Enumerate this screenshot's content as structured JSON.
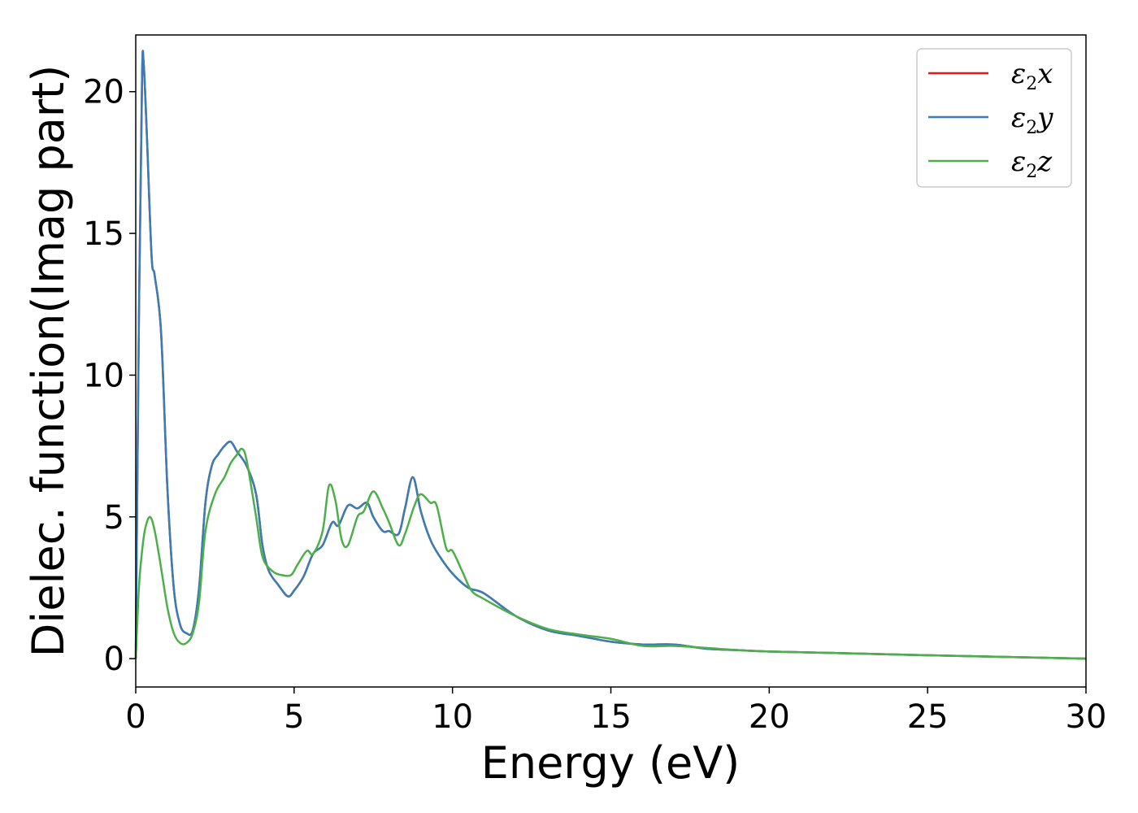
{
  "chart_data": {
    "type": "line",
    "xlabel": "Energy (eV)",
    "ylabel": "Dielec. function(Imag part)",
    "xlim": [
      0,
      30
    ],
    "ylim": [
      -1,
      22
    ],
    "xticks": [
      "0",
      "5",
      "10",
      "15",
      "20",
      "25",
      "30"
    ],
    "yticks": [
      "0",
      "5",
      "10",
      "15",
      "20"
    ],
    "grid": false,
    "legend_position": "top-right",
    "series": [
      {
        "name": "ε2x",
        "legend_main": "ε",
        "legend_sub": "2",
        "legend_var": "x",
        "color": "#e41a1c",
        "x": [
          0,
          0.1,
          0.2,
          0.25,
          0.35,
          0.5,
          0.6,
          0.8,
          1.0,
          1.2,
          1.4,
          1.6,
          1.8,
          2.0,
          2.2,
          2.4,
          2.6,
          2.8,
          3.0,
          3.2,
          3.5,
          3.8,
          4.0,
          4.2,
          4.5,
          4.8,
          5.0,
          5.3,
          5.6,
          5.9,
          6.2,
          6.4,
          6.7,
          7.0,
          7.3,
          7.5,
          7.8,
          8.0,
          8.3,
          8.5,
          8.75,
          9.0,
          9.3,
          9.6,
          10.0,
          10.5,
          11.0,
          12.0,
          13.0,
          14.0,
          15.0,
          16.0,
          17.0,
          18.0,
          19.0,
          20.0,
          22.0,
          25.0,
          30.0
        ],
        "y": [
          0,
          12,
          20.5,
          21.0,
          18.5,
          14.2,
          13.5,
          11.5,
          6.0,
          2.5,
          1.2,
          0.9,
          1.0,
          2.5,
          5.5,
          6.8,
          7.2,
          7.5,
          7.65,
          7.3,
          6.8,
          5.8,
          4.0,
          3.1,
          2.6,
          2.2,
          2.4,
          2.9,
          3.7,
          4.0,
          4.8,
          4.7,
          5.4,
          5.3,
          5.5,
          5.0,
          4.5,
          4.5,
          4.4,
          5.3,
          6.4,
          5.2,
          4.2,
          3.6,
          3.0,
          2.5,
          2.3,
          1.5,
          1.0,
          0.8,
          0.6,
          0.5,
          0.5,
          0.35,
          0.3,
          0.25,
          0.2,
          0.12,
          0.0
        ]
      },
      {
        "name": "ε2y",
        "legend_main": "ε",
        "legend_sub": "2",
        "legend_var": "y",
        "color": "#377eb8",
        "x": [
          0,
          0.1,
          0.2,
          0.25,
          0.35,
          0.5,
          0.6,
          0.8,
          1.0,
          1.2,
          1.4,
          1.6,
          1.8,
          2.0,
          2.2,
          2.4,
          2.6,
          2.8,
          3.0,
          3.2,
          3.5,
          3.8,
          4.0,
          4.2,
          4.5,
          4.8,
          5.0,
          5.3,
          5.6,
          5.9,
          6.2,
          6.4,
          6.7,
          7.0,
          7.3,
          7.5,
          7.8,
          8.0,
          8.3,
          8.5,
          8.75,
          9.0,
          9.3,
          9.6,
          10.0,
          10.5,
          11.0,
          12.0,
          13.0,
          14.0,
          15.0,
          16.0,
          17.0,
          18.0,
          19.0,
          20.0,
          22.0,
          25.0,
          30.0
        ],
        "y": [
          0,
          12,
          20.5,
          21.0,
          18.5,
          14.2,
          13.5,
          11.5,
          6.0,
          2.5,
          1.2,
          0.9,
          1.0,
          2.5,
          5.5,
          6.8,
          7.2,
          7.5,
          7.65,
          7.3,
          6.8,
          5.8,
          4.0,
          3.1,
          2.6,
          2.2,
          2.4,
          2.9,
          3.7,
          4.0,
          4.8,
          4.7,
          5.4,
          5.3,
          5.5,
          5.0,
          4.5,
          4.5,
          4.4,
          5.3,
          6.4,
          5.2,
          4.2,
          3.6,
          3.0,
          2.5,
          2.3,
          1.5,
          1.0,
          0.8,
          0.6,
          0.5,
          0.5,
          0.35,
          0.3,
          0.25,
          0.2,
          0.12,
          0.0
        ]
      },
      {
        "name": "ε2z",
        "legend_main": "ε",
        "legend_sub": "2",
        "legend_var": "z",
        "color": "#4daf4a",
        "x": [
          0,
          0.1,
          0.2,
          0.3,
          0.45,
          0.6,
          0.8,
          1.0,
          1.2,
          1.4,
          1.6,
          1.8,
          2.0,
          2.2,
          2.5,
          2.8,
          3.0,
          3.2,
          3.35,
          3.5,
          3.8,
          4.0,
          4.3,
          4.6,
          4.9,
          5.1,
          5.4,
          5.6,
          5.9,
          6.1,
          6.3,
          6.5,
          6.7,
          7.0,
          7.2,
          7.5,
          7.8,
          8.0,
          8.3,
          8.5,
          8.8,
          9.0,
          9.3,
          9.5,
          9.8,
          10.0,
          10.3,
          10.6,
          11.0,
          12.0,
          13.0,
          14.0,
          15.0,
          16.0,
          17.0,
          18.0,
          19.0,
          20.0,
          22.0,
          25.0,
          30.0
        ],
        "y": [
          0,
          2.5,
          3.8,
          4.6,
          5.0,
          4.5,
          3.2,
          1.8,
          0.9,
          0.55,
          0.55,
          0.9,
          2.0,
          4.5,
          5.8,
          6.4,
          6.9,
          7.2,
          7.4,
          7.0,
          5.0,
          3.6,
          3.1,
          2.95,
          2.95,
          3.3,
          3.8,
          3.7,
          4.5,
          6.1,
          5.6,
          4.2,
          4.0,
          5.0,
          5.2,
          5.9,
          5.3,
          4.8,
          4.0,
          4.4,
          5.4,
          5.8,
          5.5,
          5.4,
          3.9,
          3.8,
          3.1,
          2.4,
          2.1,
          1.5,
          1.05,
          0.85,
          0.7,
          0.45,
          0.45,
          0.38,
          0.3,
          0.25,
          0.2,
          0.12,
          0.0
        ]
      }
    ]
  }
}
